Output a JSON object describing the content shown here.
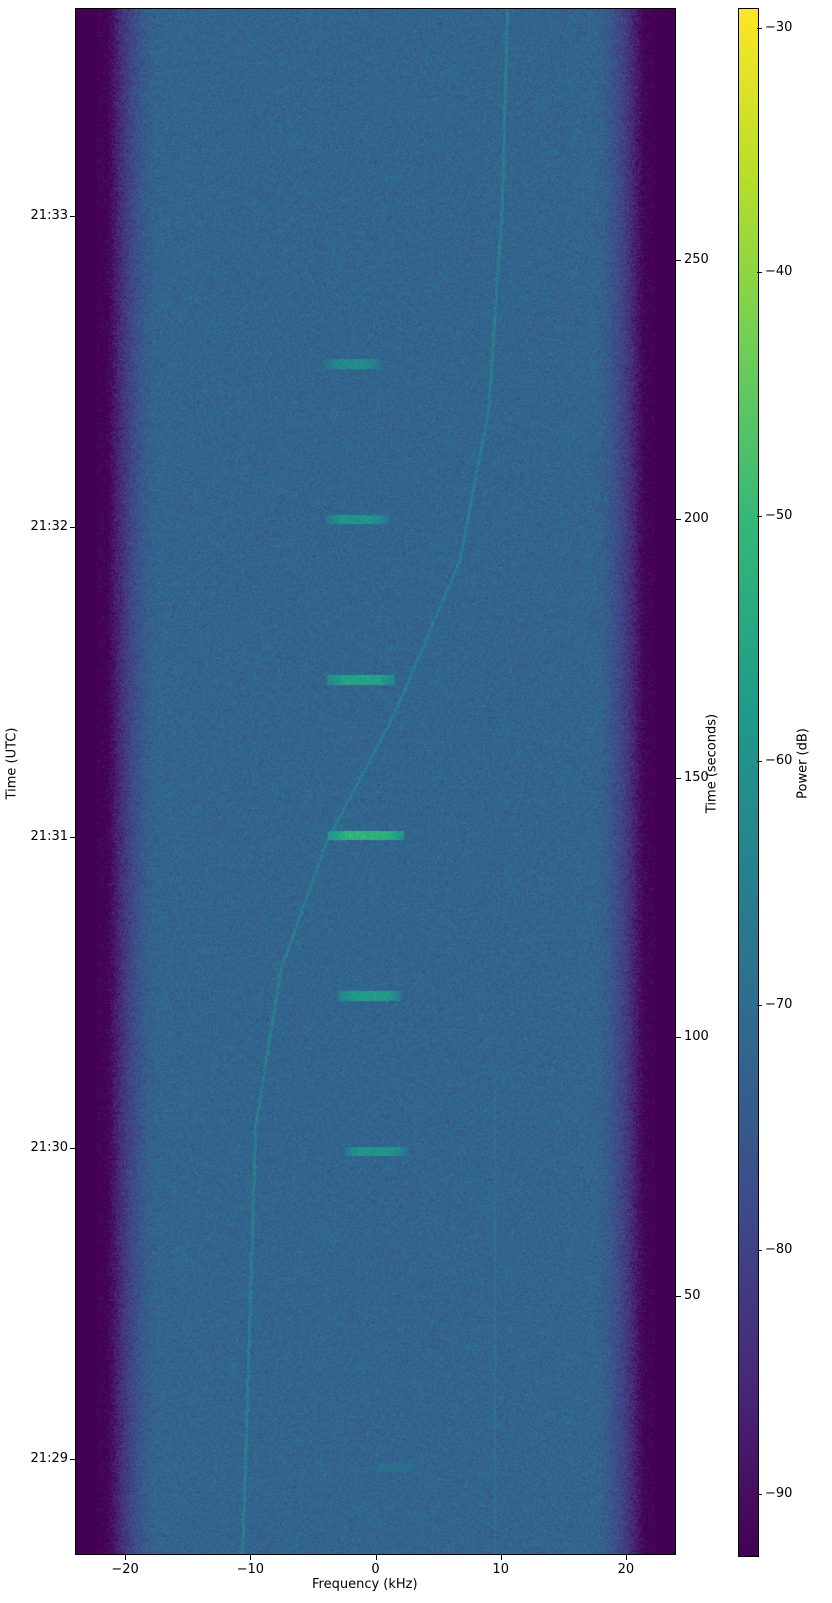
{
  "chart_data": {
    "type": "heatmap",
    "subtype": "spectrogram",
    "xlabel": "Frequency (kHz)",
    "ylabel_left": "Time (UTC)",
    "ylabel_right": "Time (seconds)",
    "colorbar_label": "Power (dB)",
    "colormap": "viridis",
    "xlim": [
      -24,
      24
    ],
    "ylim_seconds": [
      0,
      298.6
    ],
    "clim": [
      -92.5,
      -29.2
    ],
    "x_ticks": [
      -20,
      -10,
      0,
      10,
      20
    ],
    "x_tick_labels": [
      "−20",
      "−10",
      "0",
      "10",
      "20"
    ],
    "left_ticks_seconds": [
      18.5,
      78.5,
      138.5,
      198.5,
      258.5
    ],
    "left_tick_labels": [
      "21:29",
      "21:30",
      "21:31",
      "21:32",
      "21:33"
    ],
    "right_ticks": [
      50,
      100,
      150,
      200,
      250
    ],
    "right_tick_labels": [
      "50",
      "100",
      "150",
      "200",
      "250"
    ],
    "colorbar_ticks": [
      -30,
      -40,
      -50,
      -60,
      -70,
      -80,
      -90
    ],
    "colorbar_tick_labels": [
      "−30",
      "−40",
      "−50",
      "−60",
      "−70",
      "−80",
      "−90"
    ],
    "noise_floor_db": -72,
    "passband_edges_khz": [
      -21,
      21
    ],
    "bursts": [
      {
        "time_s": 17,
        "freq_center_khz": 1.5,
        "width_khz": 4,
        "power_db": -70
      },
      {
        "time_s": 78,
        "freq_center_khz": 0.0,
        "width_khz": 5,
        "power_db": -60
      },
      {
        "time_s": 108,
        "freq_center_khz": -0.5,
        "width_khz": 5,
        "power_db": -58
      },
      {
        "time_s": 139,
        "freq_center_khz": -0.8,
        "width_khz": 6,
        "power_db": -52
      },
      {
        "time_s": 169,
        "freq_center_khz": -1.2,
        "width_khz": 5.5,
        "power_db": -56
      },
      {
        "time_s": 200,
        "freq_center_khz": -1.5,
        "width_khz": 5,
        "power_db": -60
      },
      {
        "time_s": 230,
        "freq_center_khz": -1.8,
        "width_khz": 4.5,
        "power_db": -62
      }
    ],
    "doppler_trace": {
      "time_s": [
        0,
        4,
        83,
        113,
        138,
        162,
        192,
        221,
        261,
        298
      ],
      "freq_khz": [
        -10.7,
        -10.6,
        -9.6,
        -7.6,
        -3.9,
        1.4,
        6.7,
        9.0,
        10.1,
        10.5
      ],
      "power_db": -66
    },
    "faint_trace": {
      "time_s": [
        0,
        90
      ],
      "freq_khz": [
        9.5,
        9.7
      ],
      "power_db": -70
    }
  }
}
